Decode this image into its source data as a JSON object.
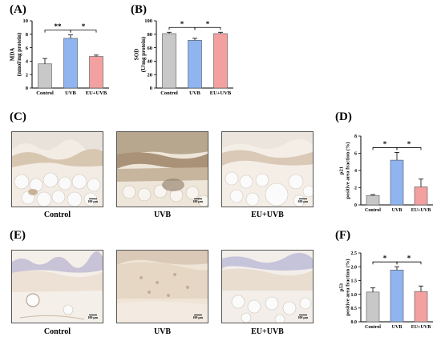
{
  "panels": {
    "A": {
      "letter": "(A)"
    },
    "B": {
      "letter": "(B)"
    },
    "C": {
      "letter": "(C)"
    },
    "D": {
      "letter": "(D)"
    },
    "E": {
      "letter": "(E)"
    },
    "F": {
      "letter": "(F)"
    }
  },
  "colors": {
    "Control": "#c8c8c8",
    "UVB": "#8fb4f0",
    "EU+UVB": "#f2a0a0"
  },
  "image_labels": {
    "C": [
      "Control",
      "UVB",
      "EU+UVB"
    ],
    "E": [
      "Control",
      "UVB",
      "EU+UVB"
    ]
  },
  "scalebar": "100 μm",
  "chart_data": [
    {
      "id": "A",
      "type": "bar",
      "categories": [
        "Control",
        "UVB",
        "EU+UVB"
      ],
      "values": [
        3.6,
        7.4,
        4.7
      ],
      "errors": [
        0.8,
        0.5,
        0.2
      ],
      "ylabel": [
        "MDA",
        "(nmol/mg protein)"
      ],
      "ylim": [
        0,
        10
      ],
      "yticks": [
        0,
        2,
        4,
        6,
        8,
        10
      ],
      "significance": [
        {
          "from": 0,
          "to": 1,
          "label": "**"
        },
        {
          "from": 1,
          "to": 2,
          "label": "*"
        }
      ]
    },
    {
      "id": "B",
      "type": "bar",
      "categories": [
        "Control",
        "UVB",
        "EU+UVB"
      ],
      "values": [
        81,
        71,
        81
      ],
      "errors": [
        2,
        3,
        2
      ],
      "ylabel": [
        "SOD",
        "(U/mg protein)"
      ],
      "ylim": [
        0,
        100
      ],
      "yticks": [
        0,
        20,
        40,
        60,
        80,
        100
      ],
      "significance": [
        {
          "from": 0,
          "to": 1,
          "label": "*"
        },
        {
          "from": 1,
          "to": 2,
          "label": "*"
        }
      ]
    },
    {
      "id": "D",
      "type": "bar",
      "categories": [
        "Control",
        "UVB",
        "EU+UVB"
      ],
      "values": [
        1.1,
        5.2,
        2.1
      ],
      "errors": [
        0.1,
        0.9,
        0.9
      ],
      "ylabel": [
        "p21",
        "positive area fraction (%)"
      ],
      "ylim": [
        0,
        8
      ],
      "yticks": [
        0,
        2,
        4,
        6,
        8
      ],
      "significance": [
        {
          "from": 0,
          "to": 1,
          "label": "*"
        },
        {
          "from": 1,
          "to": 2,
          "label": "*"
        }
      ]
    },
    {
      "id": "F",
      "type": "bar",
      "categories": [
        "Control",
        "UVB",
        "EU+UVB"
      ],
      "values": [
        1.08,
        1.88,
        1.1
      ],
      "errors": [
        0.15,
        0.12,
        0.2
      ],
      "ylabel": [
        "p53",
        "positive area fraction (%)"
      ],
      "ylim": [
        0,
        2.5
      ],
      "yticks": [
        0.0,
        0.5,
        1.0,
        1.5,
        2.0,
        2.5
      ],
      "significance": [
        {
          "from": 0,
          "to": 1,
          "label": "*"
        },
        {
          "from": 1,
          "to": 2,
          "label": "*"
        }
      ]
    }
  ]
}
